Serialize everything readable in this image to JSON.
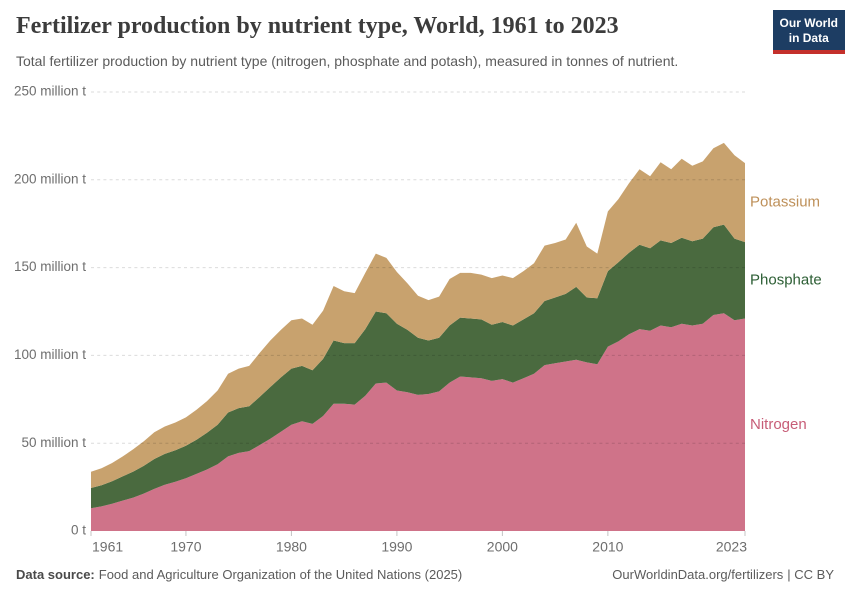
{
  "logo": {
    "line1": "Our World",
    "line2": "in Data",
    "bg_color": "#1d3d63",
    "accent_color": "#c4302b"
  },
  "chart_data": {
    "type": "area",
    "stacked": true,
    "title": "Fertilizer production by nutrient type, World, 1961 to 2023",
    "subtitle": "Total fertilizer production by nutrient type (nitrogen, phosphate and potash), measured in tonnes of nutrient.",
    "unit": "million tonnes of nutrient",
    "x_range": [
      1961,
      2023
    ],
    "ylim": [
      0,
      250
    ],
    "gridlines": "dashed-horizontal",
    "legend_position": "right-inline",
    "x_ticks": [
      1961,
      1970,
      1980,
      1990,
      2000,
      2010,
      2023
    ],
    "y_ticks": [
      {
        "value": 0,
        "label": "0 t"
      },
      {
        "value": 50,
        "label": "50 million t"
      },
      {
        "value": 100,
        "label": "100 million t"
      },
      {
        "value": 150,
        "label": "150 million t"
      },
      {
        "value": 200,
        "label": "200 million t"
      },
      {
        "value": 250,
        "label": "250 million t"
      }
    ],
    "years": [
      1961,
      1962,
      1963,
      1964,
      1965,
      1966,
      1967,
      1968,
      1969,
      1970,
      1971,
      1972,
      1973,
      1974,
      1975,
      1976,
      1977,
      1978,
      1979,
      1980,
      1981,
      1982,
      1983,
      1984,
      1985,
      1986,
      1987,
      1988,
      1989,
      1990,
      1991,
      1992,
      1993,
      1994,
      1995,
      1996,
      1997,
      1998,
      1999,
      2000,
      2001,
      2002,
      2003,
      2004,
      2005,
      2006,
      2007,
      2008,
      2009,
      2010,
      2011,
      2012,
      2013,
      2014,
      2015,
      2016,
      2017,
      2018,
      2019,
      2020,
      2021,
      2022,
      2023
    ],
    "series": [
      {
        "name": "Nitrogen",
        "color": "#CF7389",
        "label_color": "#C75D77",
        "values": [
          13,
          14,
          15.5,
          17.3,
          19,
          21.3,
          24,
          26.3,
          28,
          30,
          32.5,
          35,
          38,
          42.5,
          44.5,
          45.5,
          49,
          52.5,
          56.5,
          60.5,
          62.5,
          61,
          65.5,
          72.5,
          72.5,
          72,
          77,
          84,
          84.5,
          80,
          79,
          77.5,
          78,
          79.5,
          84.5,
          88,
          87.5,
          87,
          85.5,
          86.5,
          84.5,
          87,
          89.5,
          94.5,
          95.5,
          96.5,
          97.5,
          96,
          95,
          105,
          108,
          112,
          115,
          114,
          117,
          116,
          118,
          117,
          118,
          123,
          124,
          120,
          121
        ]
      },
      {
        "name": "Phosphate",
        "color": "#4A6A3F",
        "label_color": "#2C5E34",
        "values": [
          11.5,
          12,
          12.8,
          13.8,
          14.8,
          15.8,
          17,
          17.6,
          18,
          18.5,
          19.5,
          21,
          22.5,
          25,
          25.5,
          25.5,
          27.5,
          29.5,
          31,
          32,
          31.5,
          30.5,
          32.5,
          36,
          34.5,
          35,
          38,
          41,
          39.5,
          38,
          35.5,
          32.5,
          30.5,
          30.5,
          32.5,
          33.5,
          33.5,
          33.5,
          32,
          32.5,
          32.5,
          33.5,
          34.5,
          36.5,
          37.5,
          38.5,
          41.5,
          37,
          37.5,
          43,
          45,
          46.5,
          48,
          47,
          48.5,
          48,
          49,
          48,
          48.5,
          50,
          50.5,
          46.5,
          43.5
        ]
      },
      {
        "name": "Potassium",
        "color": "#C8A26E",
        "label_color": "#BE9059",
        "values": [
          9.2,
          9.7,
          10.4,
          11.3,
          12.7,
          13.9,
          15.2,
          15.6,
          15.8,
          16.2,
          17,
          18,
          19.5,
          22,
          22.5,
          23,
          25,
          26.5,
          27,
          27.5,
          27,
          26,
          27.5,
          31,
          29.5,
          28.5,
          32,
          33,
          31.5,
          29.5,
          26.5,
          24,
          23,
          23.5,
          26.5,
          25.5,
          26,
          25.5,
          26.5,
          26.5,
          27,
          27.5,
          28.5,
          31.5,
          31,
          31,
          36.5,
          29,
          25.5,
          34,
          36,
          39.5,
          43,
          41,
          44.5,
          42,
          45,
          43,
          44,
          45,
          46.5,
          47.5,
          45
        ]
      }
    ]
  },
  "footer": {
    "source_label": "Data source:",
    "source_text": "Food and Agriculture Organization of the United Nations (2025)",
    "link_text": "OurWorldinData.org/fertilizers",
    "license_text": "| CC BY"
  }
}
